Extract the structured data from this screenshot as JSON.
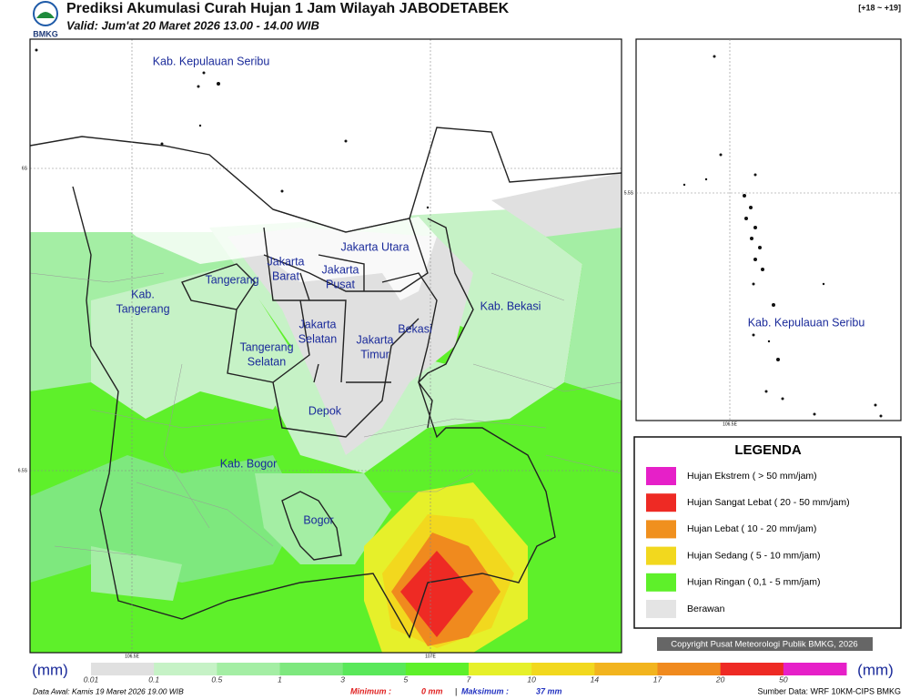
{
  "header": {
    "logo": "BMKG",
    "title": "Prediksi Akumulasi Curah Hujan 1 Jam Wilayah JABODETABEK",
    "subtitle": "Valid: Jum'at 20 Maret 2026 13.00 - 14.00 WIB",
    "range": "[+18 ~ +19]"
  },
  "map": {
    "lat_ticks": [
      "6S",
      "6.5S"
    ],
    "lon_ticks": [
      "106.5E",
      "107E"
    ],
    "regions": [
      [
        "Kab. Kepulauan Seribu"
      ],
      [
        "Jakarta Utara"
      ],
      [
        "Jakarta",
        "Barat"
      ],
      [
        "Jakarta",
        "Pusat"
      ],
      [
        "Tangerang"
      ],
      [
        "Kab.",
        "Tangerang"
      ],
      [
        "Jakarta",
        "Selatan"
      ],
      [
        "Jakarta",
        "Timur"
      ],
      [
        "Bekasi"
      ],
      [
        "Kab. Bekasi"
      ],
      [
        "Tangerang",
        "Selatan"
      ],
      [
        "Depok"
      ],
      [
        "Kab. Bogor"
      ],
      [
        "Bogor"
      ]
    ]
  },
  "inset": {
    "lat_tick": "5.5S",
    "lon_tick": "106.5E",
    "label": "Kab. Kepulauan Seribu"
  },
  "legend": {
    "title": "LEGENDA",
    "items": [
      {
        "label": "Hujan Ekstrem ( > 50 mm/jam)",
        "color": "#e620c8"
      },
      {
        "label": "Hujan Sangat Lebat ( 20 - 50 mm/jam)",
        "color": "#ee2a24"
      },
      {
        "label": "Hujan Lebat ( 10 - 20 mm/jam)",
        "color": "#f0901e"
      },
      {
        "label": "Hujan Sedang ( 5 - 10 mm/jam)",
        "color": "#f2d81e"
      },
      {
        "label": "Hujan Ringan ( 0,1 - 5 mm/jam)",
        "color": "#5ef02a"
      },
      {
        "label": "Berawan",
        "color": "#e4e4e4"
      }
    ]
  },
  "copyright": "Copyright Pusat Meteorologi Publik BMKG, 2026",
  "colorbar": {
    "unit": "(mm)",
    "ticks": [
      0.01,
      0.1,
      0.5,
      1,
      3,
      5,
      7,
      10,
      14,
      17,
      20,
      50
    ],
    "colors": [
      "#e0e0e0",
      "#c6f2c6",
      "#a4eea4",
      "#7ee87e",
      "#5ae85a",
      "#5ef02a",
      "#e6f02a",
      "#f2d81e",
      "#f2b41e",
      "#f08a1e",
      "#ee2a24",
      "#e620c8"
    ]
  },
  "footer": {
    "data_awal": "Data Awal: Kamis 19 Maret 2026 19.00 WIB",
    "min_label": "Minimum :",
    "min_value": "0 mm",
    "separator": "|",
    "max_label": "Maksimum :",
    "max_value": "37 mm",
    "source": "Sumber Data: WRF 10KM-CIPS BMKG"
  }
}
